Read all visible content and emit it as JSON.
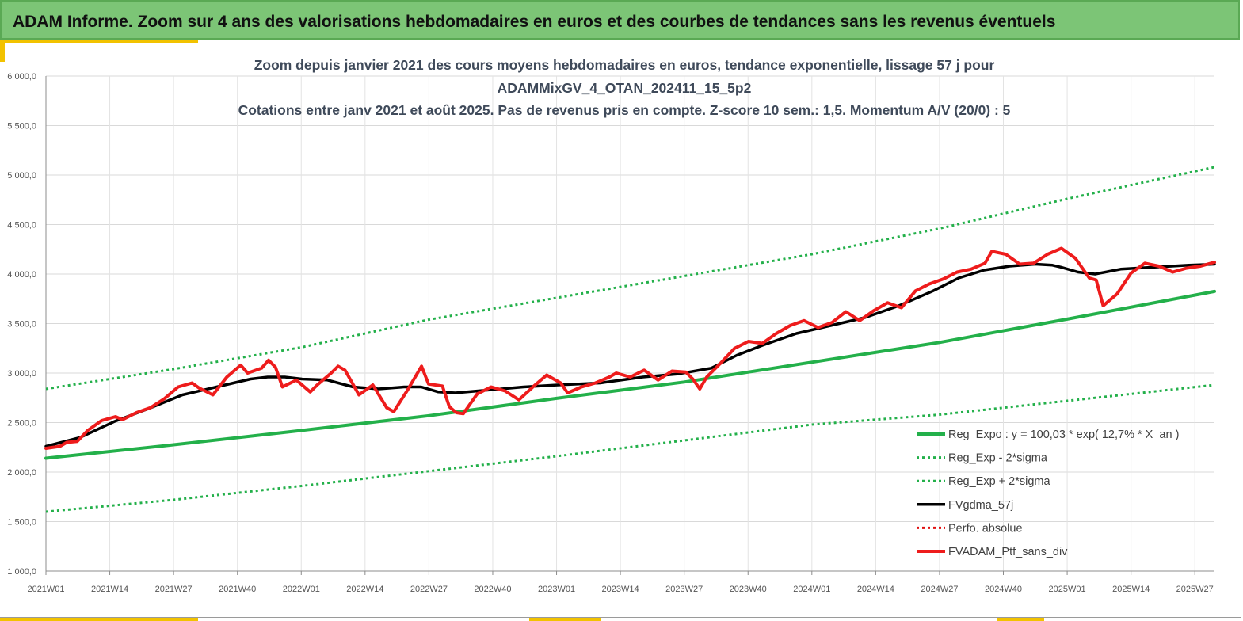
{
  "banner": {
    "title": "ADAM Informe. Zoom sur 4 ans des valorisations hebdomadaires en euros et des courbes de tendances sans les revenus éventuels"
  },
  "colors": {
    "banner_bg": "#7cc576",
    "reg_expo": "#23b04a",
    "moving_avg": "#000000",
    "portfolio": "#ee1c1c",
    "perfo": "#e01010"
  },
  "chart_data": {
    "type": "line",
    "title_lines": [
      "Zoom depuis janvier 2021 des cours moyens hebdomadaires  en euros, tendance exponentielle, lissage 57 j pour",
      "ADAMMixGV_4_OTAN_202411_15_5p2",
      "Cotations  entre janv 2021 et août 2025. Pas de revenus pris en compte. Z-score 10 sem.: 1,5. Momentum A/V (20/0) : 5"
    ],
    "x_tick_labels": [
      "2021W01",
      "2021W14",
      "2021W27",
      "2021W40",
      "2022W01",
      "2022W14",
      "2022W27",
      "2022W40",
      "2023W01",
      "2023W14",
      "2023W27",
      "2023W40",
      "2024W01",
      "2024W14",
      "2024W27",
      "2024W40",
      "2025W01",
      "2025W14",
      "2025W27"
    ],
    "x_range_weeks": [
      0,
      238
    ],
    "ylim": [
      1000,
      6000
    ],
    "y_ticks": [
      1000,
      1500,
      2000,
      2500,
      3000,
      3500,
      4000,
      4500,
      5000,
      5500,
      6000
    ],
    "y_tick_labels": [
      "1 000,0",
      "1 500,0",
      "2 000,0",
      "2 500,0",
      "3 000,0",
      "3 500,0",
      "4 000,0",
      "4 500,0",
      "5 000,0",
      "5 500,0",
      "6 000,0"
    ],
    "grid": true,
    "legend_position": "bottom-right",
    "series": [
      {
        "name": "Reg_Expo : y = 100,03 * exp( 12,7% *  X_an )",
        "style": "solid-thick",
        "color": "#23b04a",
        "points": [
          [
            0,
            2140
          ],
          [
            24,
            2265
          ],
          [
            52,
            2420
          ],
          [
            78,
            2570
          ],
          [
            104,
            2745
          ],
          [
            130,
            2910
          ],
          [
            156,
            3110
          ],
          [
            182,
            3310
          ],
          [
            208,
            3545
          ],
          [
            238,
            3825
          ]
        ]
      },
      {
        "name": "Reg_Exp - 2*sigma",
        "style": "dotted",
        "color": "#23b04a",
        "points": [
          [
            0,
            1600
          ],
          [
            26,
            1720
          ],
          [
            52,
            1860
          ],
          [
            78,
            2010
          ],
          [
            104,
            2160
          ],
          [
            130,
            2320
          ],
          [
            156,
            2480
          ],
          [
            182,
            2580
          ],
          [
            208,
            2720
          ],
          [
            238,
            2880
          ]
        ]
      },
      {
        "name": "Reg_Exp + 2*sigma",
        "style": "dotted",
        "color": "#23b04a",
        "points": [
          [
            0,
            2840
          ],
          [
            26,
            3040
          ],
          [
            52,
            3260
          ],
          [
            78,
            3540
          ],
          [
            104,
            3760
          ],
          [
            130,
            3980
          ],
          [
            156,
            4200
          ],
          [
            182,
            4460
          ],
          [
            208,
            4760
          ],
          [
            238,
            5080
          ]
        ]
      },
      {
        "name": "FVgdma_57j",
        "style": "solid",
        "color": "#000000",
        "points": [
          [
            0,
            2260
          ],
          [
            8,
            2350
          ],
          [
            16,
            2510
          ],
          [
            24,
            2640
          ],
          [
            32,
            2780
          ],
          [
            40,
            2860
          ],
          [
            48,
            2940
          ],
          [
            52,
            2960
          ],
          [
            56,
            2960
          ],
          [
            60,
            2940
          ],
          [
            66,
            2930
          ],
          [
            72,
            2860
          ],
          [
            78,
            2840
          ],
          [
            84,
            2860
          ],
          [
            88,
            2860
          ],
          [
            92,
            2810
          ],
          [
            96,
            2800
          ],
          [
            104,
            2830
          ],
          [
            112,
            2860
          ],
          [
            120,
            2880
          ],
          [
            130,
            2900
          ],
          [
            140,
            2960
          ],
          [
            148,
            2990
          ],
          [
            156,
            3050
          ],
          [
            162,
            3180
          ],
          [
            168,
            3280
          ],
          [
            176,
            3400
          ],
          [
            184,
            3480
          ],
          [
            192,
            3560
          ],
          [
            200,
            3680
          ],
          [
            208,
            3830
          ],
          [
            214,
            3960
          ],
          [
            220,
            4040
          ],
          [
            226,
            4080
          ],
          [
            232,
            4100
          ],
          [
            236,
            4090
          ],
          [
            238,
            4070
          ],
          [
            242,
            4020
          ],
          [
            246,
            4000
          ],
          [
            252,
            4050
          ],
          [
            260,
            4070
          ],
          [
            268,
            4090
          ],
          [
            274,
            4100
          ]
        ]
      },
      {
        "name": "Perfo. absolue",
        "style": "dotted",
        "color": "#e01010",
        "points": []
      },
      {
        "name": "FVADAM_Ptf_sans_div",
        "style": "solid-thick",
        "color": "#ee1c1c",
        "points": [
          [
            0,
            2240
          ],
          [
            4,
            2260
          ],
          [
            6,
            2300
          ],
          [
            9,
            2310
          ],
          [
            12,
            2420
          ],
          [
            16,
            2520
          ],
          [
            20,
            2560
          ],
          [
            22,
            2530
          ],
          [
            26,
            2600
          ],
          [
            30,
            2650
          ],
          [
            34,
            2740
          ],
          [
            38,
            2860
          ],
          [
            42,
            2900
          ],
          [
            44,
            2850
          ],
          [
            48,
            2780
          ],
          [
            52,
            2960
          ],
          [
            56,
            3080
          ],
          [
            58,
            3000
          ],
          [
            62,
            3050
          ],
          [
            64,
            3130
          ],
          [
            66,
            3060
          ],
          [
            68,
            2860
          ],
          [
            72,
            2930
          ],
          [
            76,
            2810
          ],
          [
            78,
            2880
          ],
          [
            82,
            3000
          ],
          [
            84,
            3070
          ],
          [
            86,
            3030
          ],
          [
            90,
            2780
          ],
          [
            94,
            2880
          ],
          [
            98,
            2650
          ],
          [
            100,
            2610
          ],
          [
            104,
            2830
          ],
          [
            108,
            3070
          ],
          [
            110,
            2890
          ],
          [
            114,
            2870
          ],
          [
            116,
            2660
          ],
          [
            118,
            2600
          ],
          [
            120,
            2590
          ],
          [
            124,
            2790
          ],
          [
            128,
            2860
          ],
          [
            132,
            2820
          ],
          [
            136,
            2730
          ],
          [
            140,
            2860
          ],
          [
            144,
            2980
          ],
          [
            148,
            2900
          ],
          [
            150,
            2800
          ],
          [
            154,
            2860
          ],
          [
            158,
            2900
          ],
          [
            162,
            2960
          ],
          [
            164,
            3000
          ],
          [
            168,
            2960
          ],
          [
            172,
            3030
          ],
          [
            176,
            2930
          ],
          [
            180,
            3020
          ],
          [
            184,
            3010
          ],
          [
            186,
            2940
          ],
          [
            188,
            2840
          ],
          [
            190,
            2960
          ],
          [
            194,
            3100
          ],
          [
            198,
            3250
          ],
          [
            202,
            3320
          ],
          [
            206,
            3300
          ],
          [
            210,
            3400
          ],
          [
            214,
            3480
          ],
          [
            218,
            3530
          ],
          [
            222,
            3460
          ],
          [
            226,
            3510
          ],
          [
            230,
            3620
          ],
          [
            234,
            3530
          ],
          [
            238,
            3630
          ],
          [
            242,
            3710
          ],
          [
            246,
            3660
          ],
          [
            250,
            3830
          ],
          [
            254,
            3900
          ],
          [
            258,
            3950
          ],
          [
            262,
            4020
          ],
          [
            266,
            4050
          ],
          [
            270,
            4110
          ],
          [
            272,
            4230
          ],
          [
            276,
            4200
          ],
          [
            280,
            4100
          ],
          [
            284,
            4110
          ],
          [
            288,
            4200
          ],
          [
            292,
            4260
          ],
          [
            296,
            4160
          ],
          [
            300,
            3960
          ],
          [
            302,
            3940
          ],
          [
            304,
            3680
          ],
          [
            308,
            3800
          ],
          [
            312,
            4010
          ],
          [
            316,
            4110
          ],
          [
            320,
            4080
          ],
          [
            324,
            4020
          ],
          [
            328,
            4060
          ],
          [
            332,
            4080
          ],
          [
            336,
            4120
          ]
        ]
      }
    ]
  }
}
